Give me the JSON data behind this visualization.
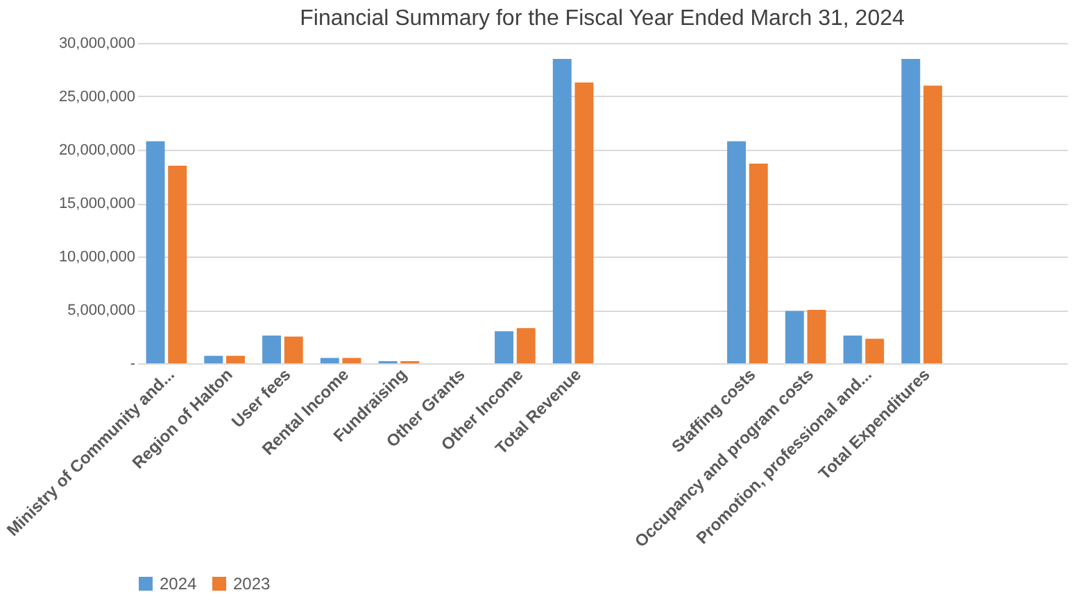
{
  "chart_data": {
    "type": "bar",
    "title": "Financial Summary for the Fiscal Year Ended March 31, 2024",
    "categories": [
      "Ministry of Community and...",
      "Region of Halton",
      "User fees",
      "Rental Income",
      "Fundraising",
      "Other Grants",
      "Other Income",
      "Total Revenue",
      null,
      null,
      "Staffing costs",
      "Occupancy and program costs",
      "Promotion, professional and...",
      "Total Expenditures",
      null,
      null
    ],
    "series": [
      {
        "name": "2024",
        "color": "#5b9bd5",
        "values": [
          20800000,
          700000,
          2600000,
          500000,
          200000,
          null,
          3000000,
          28500000,
          null,
          null,
          20800000,
          4900000,
          2600000,
          28500000,
          null,
          null
        ]
      },
      {
        "name": "2023",
        "color": "#ed7d31",
        "values": [
          18500000,
          700000,
          2500000,
          500000,
          200000,
          null,
          3300000,
          26300000,
          null,
          null,
          18700000,
          5000000,
          2300000,
          26000000,
          null,
          null
        ]
      }
    ],
    "ylim": [
      0,
      30000000
    ],
    "yticks": [
      {
        "value": 0,
        "label": "-"
      },
      {
        "value": 5000000,
        "label": "5,000,000"
      },
      {
        "value": 10000000,
        "label": "10,000,000"
      },
      {
        "value": 15000000,
        "label": "15,000,000"
      },
      {
        "value": 20000000,
        "label": "20,000,000"
      },
      {
        "value": 25000000,
        "label": "25,000,000"
      },
      {
        "value": 30000000,
        "label": "30,000,000"
      }
    ],
    "grid": "y",
    "legend": "bottom"
  }
}
